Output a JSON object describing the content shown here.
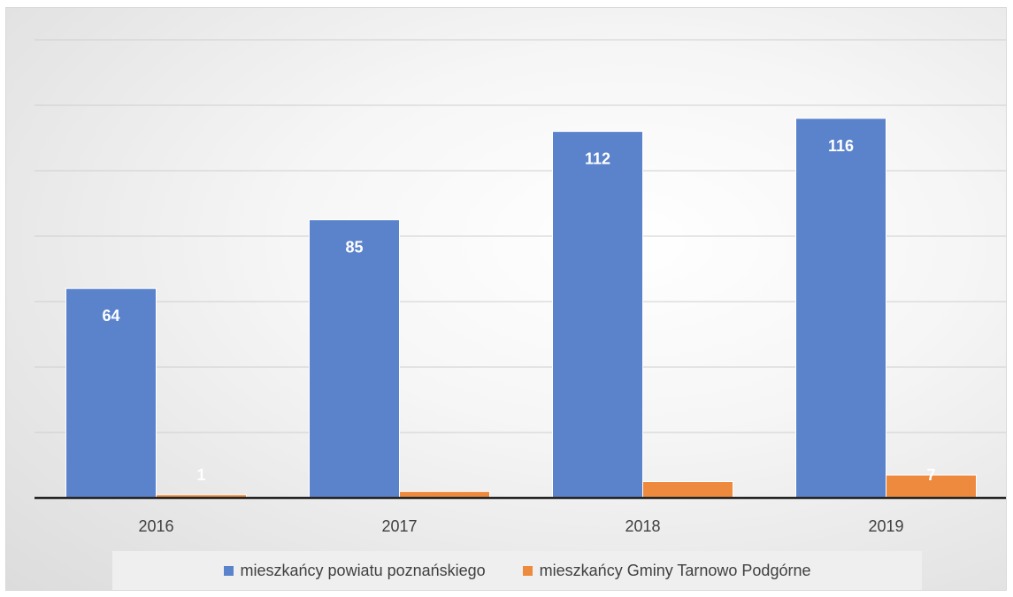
{
  "chart_data": {
    "type": "bar",
    "title": "",
    "xlabel": "",
    "ylabel": "",
    "categories": [
      "2016",
      "2017",
      "2018",
      "2019"
    ],
    "series": [
      {
        "name": "mieszkańcy powiatu poznańskiego",
        "values": [
          64,
          85,
          112,
          116
        ],
        "labels": [
          "64",
          "85",
          "112",
          "116"
        ],
        "color": "#5b83cb"
      },
      {
        "name": "mieszkańcy Gminy Tarnowo Podgórne",
        "values": [
          1,
          2,
          5,
          7
        ],
        "labels": [
          "1",
          "",
          "",
          "7"
        ],
        "color": "#ed8a3e"
      }
    ],
    "ylim": [
      0,
      140
    ],
    "grid_step": 20,
    "grid": true,
    "y_tick_labels_shown": false,
    "legend_position": "bottom"
  }
}
